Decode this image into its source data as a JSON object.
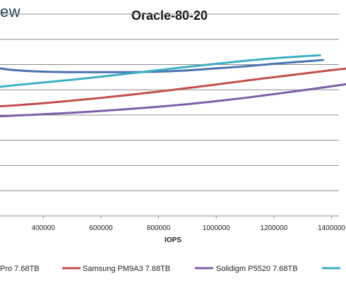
{
  "brand": {
    "text": "ew"
  },
  "chart_data": {
    "type": "line",
    "title": "Oracle-80-20",
    "xlabel": "IOPS",
    "ylabel": "",
    "x_ticks": [
      400000,
      600000,
      800000,
      1000000,
      1200000,
      1400000
    ],
    "x_tick_labels": [
      "400000",
      "600000",
      "800000",
      "1000000",
      "1200000",
      "1400000"
    ],
    "xlim": [
      250000,
      1450000
    ],
    "ylim": [
      0,
      8
    ],
    "grid": true,
    "legend_position": "bottom",
    "series": [
      {
        "name": "Pro 7.68TB",
        "color": "#4a72b0",
        "x": [
          250000,
          300000,
          400000,
          500000,
          600000,
          700000,
          800000,
          900000,
          1000000,
          1100000,
          1200000,
          1300000,
          1370000
        ],
        "y": [
          5.85,
          5.78,
          5.72,
          5.7,
          5.7,
          5.7,
          5.72,
          5.77,
          5.85,
          5.93,
          6.03,
          6.12,
          6.18
        ]
      },
      {
        "name": "Samsung PM9A3 7.68TB",
        "color": "#c0504d",
        "x": [
          250000,
          300000,
          400000,
          500000,
          600000,
          700000,
          800000,
          900000,
          1000000,
          1100000,
          1200000,
          1300000,
          1400000,
          1450000
        ],
        "y": [
          4.35,
          4.38,
          4.47,
          4.57,
          4.68,
          4.8,
          4.93,
          5.07,
          5.21,
          5.36,
          5.5,
          5.64,
          5.78,
          5.84
        ]
      },
      {
        "name": "Solidigm P5520 7.68TB",
        "color": "#7f5ea8",
        "x": [
          250000,
          300000,
          400000,
          500000,
          600000,
          700000,
          800000,
          900000,
          1000000,
          1100000,
          1200000,
          1300000,
          1400000,
          1450000
        ],
        "y": [
          3.95,
          3.98,
          4.03,
          4.09,
          4.16,
          4.24,
          4.33,
          4.43,
          4.55,
          4.68,
          4.83,
          4.98,
          5.14,
          5.22
        ]
      },
      {
        "name": "",
        "color": "#3cb0c2",
        "x": [
          250000,
          300000,
          400000,
          500000,
          600000,
          700000,
          800000,
          900000,
          1000000,
          1100000,
          1200000,
          1300000,
          1360000
        ],
        "y": [
          5.12,
          5.18,
          5.29,
          5.4,
          5.52,
          5.65,
          5.78,
          5.91,
          6.03,
          6.15,
          6.25,
          6.33,
          6.37
        ]
      }
    ]
  }
}
